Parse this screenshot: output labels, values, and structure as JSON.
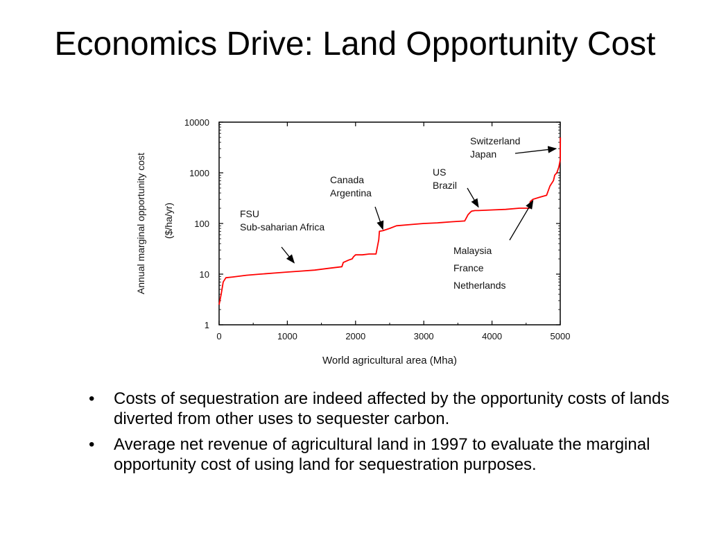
{
  "slide": {
    "title": "Economics Drive: Land Opportunity Cost",
    "bullets": [
      "Costs of sequestration are indeed affected by the opportunity costs of lands diverted from other uses to sequester carbon.",
      "Average net revenue of agricultural land in 1997 to evaluate the marginal opportunity cost of using land for sequestration purposes."
    ],
    "bullet_char": "•"
  },
  "chart_data": {
    "type": "line",
    "xlabel": "World agricultural area (Mha)",
    "ylabel": [
      "Annual marginal opportunity cost",
      "($/ha/yr)"
    ],
    "xlim": [
      0,
      5000
    ],
    "ylim": [
      1,
      10000
    ],
    "yscale": "log",
    "xticks": [
      0,
      1000,
      2000,
      3000,
      4000,
      5000
    ],
    "yticks": [
      1,
      10,
      100,
      1000,
      10000
    ],
    "grid": false,
    "line_color": "#ff0000",
    "series": [
      {
        "x": [
          0,
          30,
          60,
          100,
          200,
          400,
          600,
          800,
          1000,
          1200,
          1400,
          1600,
          1800,
          1820,
          1900,
          1950,
          1970,
          2000,
          2100,
          2200,
          2300,
          2340,
          2350,
          2400,
          2500,
          2600,
          2800,
          3000,
          3200,
          3400,
          3600,
          3650,
          3680,
          3700,
          3750,
          3800,
          4000,
          4200,
          4400,
          4550,
          4560,
          4600,
          4700,
          4800,
          4850,
          4900,
          4920,
          4950,
          4980,
          5000,
          5010,
          5020
        ],
        "y": [
          2.5,
          4,
          7,
          8.5,
          8.8,
          9.5,
          10,
          10.5,
          11,
          11.5,
          12,
          13,
          14,
          17,
          19,
          20,
          22,
          24,
          24,
          25,
          25,
          48,
          70,
          72,
          80,
          90,
          95,
          100,
          103,
          108,
          112,
          150,
          165,
          175,
          180,
          180,
          185,
          190,
          200,
          200,
          270,
          300,
          330,
          360,
          550,
          700,
          900,
          1000,
          1300,
          1800,
          3000,
          5000
        ]
      }
    ],
    "annotations": [
      {
        "lines": [
          "FSU",
          "Sub-saharian Africa"
        ],
        "target_x": 1100,
        "target_y": 13
      },
      {
        "lines": [
          "Canada",
          "Argentina"
        ],
        "target_x": 2400,
        "target_y": 68
      },
      {
        "lines": [
          "US",
          "Brazil"
        ],
        "target_x": 3800,
        "target_y": 175
      },
      {
        "lines": [
          "Switzerland",
          "Japan"
        ],
        "target_x": 5000,
        "target_y": 3000
      },
      {
        "lines": [
          "Malaysia",
          "France",
          "Netherlands"
        ],
        "target_x": 4600,
        "target_y": 300
      }
    ]
  }
}
